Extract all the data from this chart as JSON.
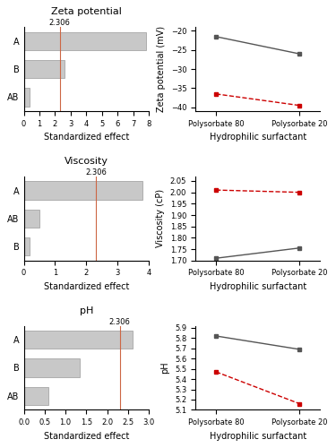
{
  "rows": [
    {
      "title": "Zeta potential",
      "pareto": {
        "labels": [
          "AB",
          "B",
          "A"
        ],
        "values": [
          0.35,
          2.6,
          7.8
        ],
        "xlim": [
          0,
          8
        ],
        "xticks": [
          0,
          1,
          2,
          3,
          4,
          5,
          6,
          7,
          8
        ],
        "ref_line": 2.306
      },
      "interaction": {
        "ylabel": "Zeta potential (mV)",
        "ylim": [
          -41,
          -19
        ],
        "yticks": [
          -40,
          -35,
          -30,
          -25,
          -20
        ],
        "x_labels": [
          "Polysorbate 80",
          "Polysorbate 20"
        ],
        "line1": [
          -21.5,
          -26.0
        ],
        "line2": [
          -36.5,
          -39.5
        ],
        "line1_color": "#555555",
        "line2_color": "#cc0000",
        "line1_style": "-",
        "line2_style": "--"
      }
    },
    {
      "title": "Viscosity",
      "pareto": {
        "labels": [
          "B",
          "AB",
          "A"
        ],
        "values": [
          0.18,
          0.5,
          3.8
        ],
        "xlim": [
          0,
          4
        ],
        "xticks": [
          0,
          1,
          2,
          3,
          4
        ],
        "ref_line": 2.306
      },
      "interaction": {
        "ylabel": "Viscosity (cP)",
        "ylim": [
          1.7,
          2.07
        ],
        "yticks": [
          1.7,
          1.75,
          1.8,
          1.85,
          1.9,
          1.95,
          2.0,
          2.05
        ],
        "x_labels": [
          "Polysorbate 80",
          "Polysorbate 20"
        ],
        "line1": [
          1.71,
          1.755
        ],
        "line2": [
          2.01,
          2.0
        ],
        "line1_color": "#555555",
        "line2_color": "#cc0000",
        "line1_style": "-",
        "line2_style": "--"
      }
    },
    {
      "title": "pH",
      "pareto": {
        "labels": [
          "AB",
          "B",
          "A"
        ],
        "values": [
          0.6,
          1.35,
          2.62
        ],
        "xlim": [
          0,
          3.0
        ],
        "xticks": [
          0.0,
          0.5,
          1.0,
          1.5,
          2.0,
          2.5,
          3.0
        ],
        "ref_line": 2.306
      },
      "interaction": {
        "ylabel": "pH",
        "ylim": [
          5.1,
          5.92
        ],
        "yticks": [
          5.1,
          5.2,
          5.3,
          5.4,
          5.5,
          5.6,
          5.7,
          5.8,
          5.9
        ],
        "x_labels": [
          "Polysorbate 80",
          "Polysorbate 20"
        ],
        "line1": [
          5.82,
          5.69
        ],
        "line2": [
          5.47,
          5.16
        ],
        "line1_color": "#555555",
        "line2_color": "#cc0000",
        "line1_style": "-",
        "line2_style": "--"
      }
    }
  ],
  "bar_color": "#c8c8c8",
  "ref_line_color": "#cc6644",
  "xlabel_pareto": "Standardized effect",
  "xlabel_interaction": "Hydrophilic surfactant",
  "background_color": "#ffffff",
  "marker": "s"
}
